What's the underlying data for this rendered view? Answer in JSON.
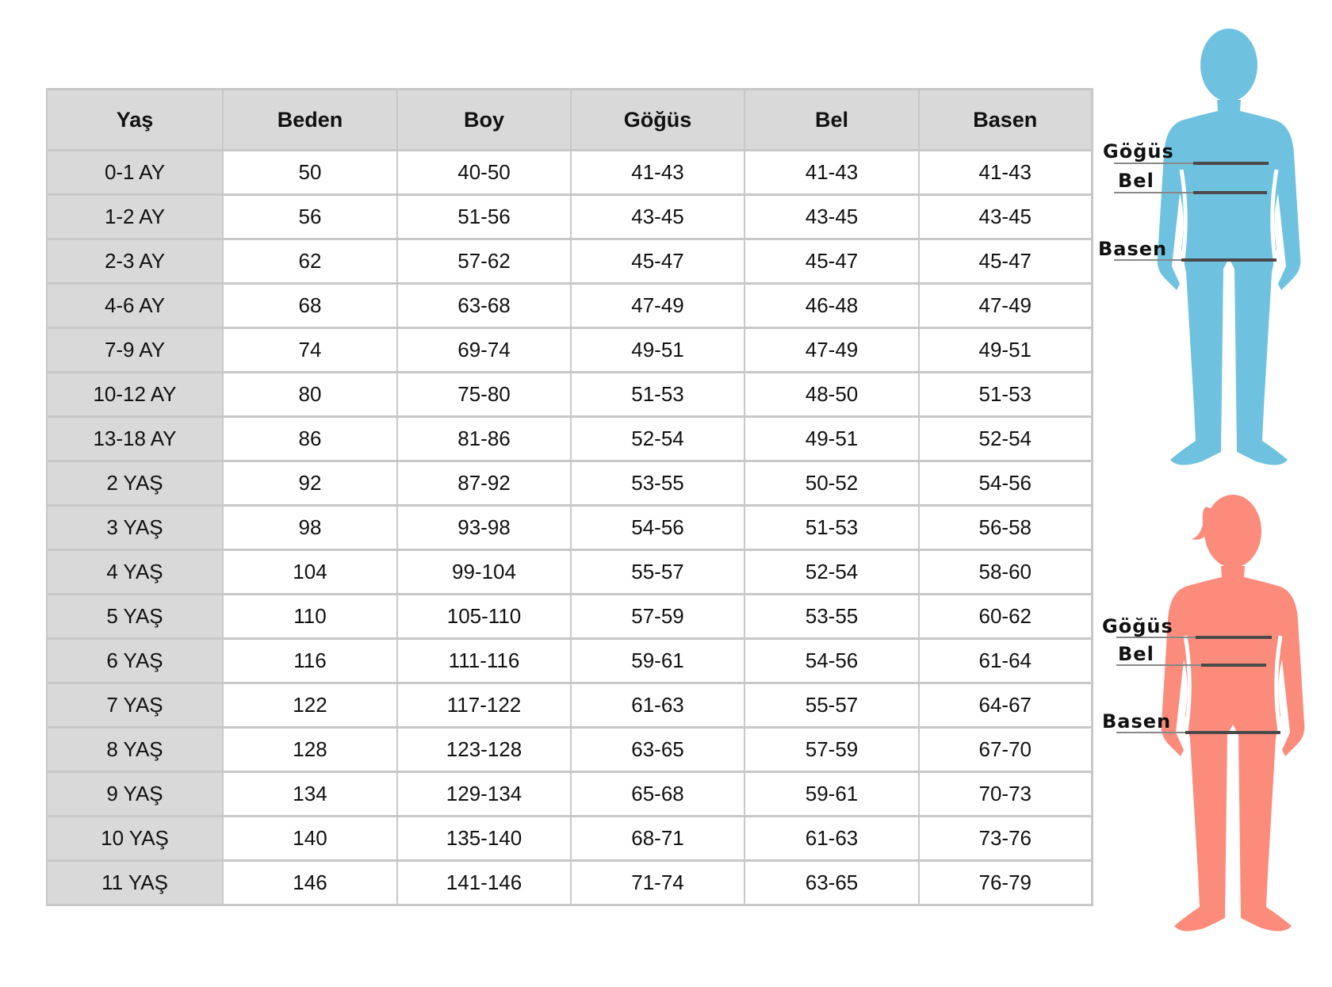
{
  "table": {
    "headers": [
      "Yaş",
      "Beden",
      "Boy",
      "Göğüs",
      "Bel",
      "Basen"
    ],
    "rows": [
      [
        "0-1 AY",
        "50",
        "40-50",
        "41-43",
        "41-43",
        "41-43"
      ],
      [
        "1-2 AY",
        "56",
        "51-56",
        "43-45",
        "43-45",
        "43-45"
      ],
      [
        "2-3 AY",
        "62",
        "57-62",
        "45-47",
        "45-47",
        "45-47"
      ],
      [
        "4-6 AY",
        "68",
        "63-68",
        "47-49",
        "46-48",
        "47-49"
      ],
      [
        "7-9 AY",
        "74",
        "69-74",
        "49-51",
        "47-49",
        "49-51"
      ],
      [
        "10-12 AY",
        "80",
        "75-80",
        "51-53",
        "48-50",
        "51-53"
      ],
      [
        "13-18 AY",
        "86",
        "81-86",
        "52-54",
        "49-51",
        "52-54"
      ],
      [
        "2 YAŞ",
        "92",
        "87-92",
        "53-55",
        "50-52",
        "54-56"
      ],
      [
        "3 YAŞ",
        "98",
        "93-98",
        "54-56",
        "51-53",
        "56-58"
      ],
      [
        "4 YAŞ",
        "104",
        "99-104",
        "55-57",
        "52-54",
        "58-60"
      ],
      [
        "5 YAŞ",
        "110",
        "105-110",
        "57-59",
        "53-55",
        "60-62"
      ],
      [
        "6 YAŞ",
        "116",
        "111-116",
        "59-61",
        "54-56",
        "61-64"
      ],
      [
        "7 YAŞ",
        "122",
        "117-122",
        "61-63",
        "55-57",
        "64-67"
      ],
      [
        "8 YAŞ",
        "128",
        "123-128",
        "63-65",
        "57-59",
        "67-70"
      ],
      [
        "9 YAŞ",
        "134",
        "129-134",
        "65-68",
        "59-61",
        "70-73"
      ],
      [
        "10 YAŞ",
        "140",
        "135-140",
        "68-71",
        "61-63",
        "73-76"
      ],
      [
        "11 YAŞ",
        "146",
        "141-146",
        "71-74",
        "63-65",
        "76-79"
      ]
    ]
  },
  "figures": {
    "boy": {
      "color": "#6fc2df",
      "labels": [
        "Göğüs",
        "Bel",
        "Basen"
      ]
    },
    "girl": {
      "color": "#fb8c7b",
      "labels": [
        "Göğüs",
        "Bel",
        "Basen"
      ]
    }
  }
}
